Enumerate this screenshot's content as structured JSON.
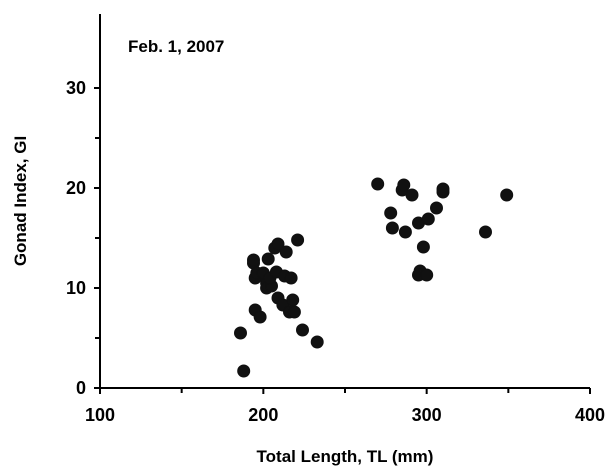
{
  "chart_data": {
    "type": "scatter",
    "title": "",
    "annotation": "Feb. 1, 2007",
    "xlabel": "Total Length, TL (mm)",
    "ylabel": "Gonad Index, GI",
    "xlim": [
      100,
      400
    ],
    "ylim": [
      0,
      35
    ],
    "x_ticks": [
      100,
      200,
      300,
      400
    ],
    "y_ticks": [
      0,
      10,
      20,
      30
    ],
    "grid": false,
    "legend": "none",
    "point_color": "#111111",
    "series": [
      {
        "points": [
          [
            188,
            1.7
          ],
          [
            186,
            5.5
          ],
          [
            195,
            7.8
          ],
          [
            198,
            7.1
          ],
          [
            195,
            11.0
          ],
          [
            194,
            12.5
          ],
          [
            194,
            12.8
          ],
          [
            196,
            11.5
          ],
          [
            200,
            11.5
          ],
          [
            203,
            12.9
          ],
          [
            202,
            10.5
          ],
          [
            202,
            10.0
          ],
          [
            205,
            10.2
          ],
          [
            204,
            11.0
          ],
          [
            207,
            14.0
          ],
          [
            209,
            14.4
          ],
          [
            208,
            11.6
          ],
          [
            209,
            9.0
          ],
          [
            212,
            8.3
          ],
          [
            213,
            11.2
          ],
          [
            214,
            13.6
          ],
          [
            216,
            7.6
          ],
          [
            217,
            11.0
          ],
          [
            218,
            8.8
          ],
          [
            219,
            7.6
          ],
          [
            221,
            14.8
          ],
          [
            224,
            5.8
          ],
          [
            233,
            4.6
          ],
          [
            270,
            20.4
          ],
          [
            278,
            17.5
          ],
          [
            279,
            16.0
          ],
          [
            285,
            19.8
          ],
          [
            286,
            20.3
          ],
          [
            287,
            15.6
          ],
          [
            291,
            19.3
          ],
          [
            295,
            16.5
          ],
          [
            296,
            11.7
          ],
          [
            295,
            11.3
          ],
          [
            298,
            14.1
          ],
          [
            301,
            16.9
          ],
          [
            300,
            11.3
          ],
          [
            306,
            18.0
          ],
          [
            310,
            19.6
          ],
          [
            310,
            19.9
          ],
          [
            336,
            15.6
          ],
          [
            349,
            19.3
          ]
        ]
      }
    ]
  }
}
